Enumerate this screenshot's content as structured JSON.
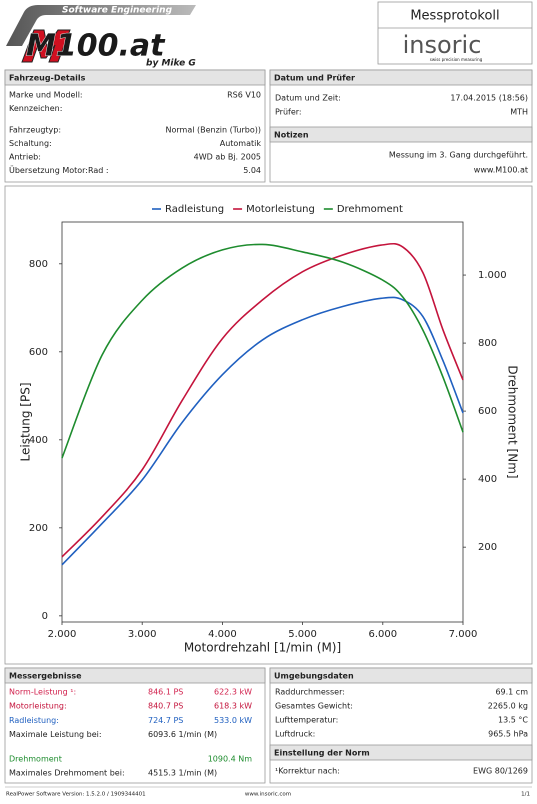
{
  "header": {
    "logo_tagline": "Software Engineering",
    "logo_title": "M100.at",
    "logo_author": "by Mike G",
    "protocol_title": "Messprotokoll",
    "brand": "insoric",
    "brand_tagline": "swiss precision measuring"
  },
  "vehicle": {
    "title": "Fahrzeug-Details",
    "rows": [
      [
        "Marke und Modell:",
        "RS6 V10"
      ],
      [
        "Kennzeichen:"
      ],
      [
        "Fahrzeugtyp:",
        "Normal (Benzin (Turbo))"
      ],
      [
        "Schaltung:",
        "Automatik"
      ],
      [
        "Antrieb:",
        "4WD ab Bj. 2005"
      ],
      [
        "Übersetzung Motor:Rad :",
        "5.04"
      ]
    ]
  },
  "inspection": {
    "title": "Datum und Prüfer",
    "rows": [
      [
        "Datum und Zeit:",
        "17.04.2015 (18:56)"
      ],
      [
        "Prüfer:",
        "MTH"
      ]
    ]
  },
  "notes": {
    "title": "Notizen",
    "lines": [
      "Messung im 3. Gang durchgeführt.",
      "www.M100.at"
    ]
  },
  "chart_data": {
    "type": "line",
    "x_label": "Motordrehzahl [1/min (M)]",
    "y_label": "Leistung [PS]",
    "y2_label": "Drehmoment [Nm]",
    "x": [
      2000,
      2500,
      3000,
      3500,
      4000,
      4500,
      5000,
      5500,
      6000,
      6250,
      6500,
      6750,
      7000
    ],
    "series": [
      {
        "name": "Radleistung",
        "color": "#2060c0",
        "values": [
          116,
          210,
          309,
          440,
          548,
          627,
          673,
          703,
          722,
          718,
          680,
          580,
          461
        ]
      },
      {
        "name": "Motorleistung",
        "color": "#c4143c",
        "values": [
          134,
          225,
          332,
          490,
          630,
          718,
          782,
          820,
          843,
          838,
          780,
          650,
          536
        ]
      },
      {
        "name": "Drehmoment",
        "color": "#1e8c2e",
        "axis": "y2",
        "values": [
          462,
          765,
          926,
          1021,
          1074,
          1090,
          1068,
          1038,
          985,
          935,
          838,
          700,
          538
        ]
      }
    ],
    "xlim": [
      2000,
      7000
    ],
    "xticks": [
      {
        "value": 2000,
        "label": "2.000"
      },
      {
        "value": 3000,
        "label": "3.000"
      },
      {
        "value": 4000,
        "label": "4.000"
      },
      {
        "value": 5000,
        "label": "5.000"
      },
      {
        "value": 6000,
        "label": "6.000"
      },
      {
        "value": 7000,
        "label": "7.000"
      }
    ],
    "ylim": [
      -14,
      895
    ],
    "yticks": [
      0,
      200,
      400,
      600,
      800
    ],
    "y2lim": [
      -20,
      1156
    ],
    "y2ticks": [
      200,
      400,
      600,
      800,
      {
        "value": 1000,
        "label": "1.000"
      }
    ],
    "legend": "top",
    "grid": false
  },
  "results": {
    "title": "Messergebnisse",
    "rows": [
      {
        "label": "Norm-Leistung ¹:",
        "mid": "846.1 PS",
        "right": "622.3 kW",
        "color": "#d2224e"
      },
      {
        "label": "Motorleistung:",
        "mid": "840.7 PS",
        "right": "618.3 kW",
        "color": "#c4143c"
      },
      {
        "label": "Radleistung:",
        "mid": "724.7 PS",
        "right": "533.0 kW",
        "color": "#2060c0"
      },
      {
        "label": "Maximale Leistung bei:",
        "mid": "6093.6 1/min (M)"
      },
      {
        "label": "Drehmoment",
        "right": "1090.4 Nm",
        "color": "#1e8c2e"
      },
      {
        "label": "Maximales Drehmoment bei:",
        "mid": "4515.3 1/min (M)"
      }
    ]
  },
  "environment": {
    "title": "Umgebungsdaten",
    "rows": [
      [
        "Raddurchmesser:",
        "69.1 cm"
      ],
      [
        "Gesamtes Gewicht:",
        "2265.0 kg"
      ],
      [
        "Lufttemperatur:",
        "13.5 °C"
      ],
      [
        "Luftdruck:",
        "965.5 hPa"
      ]
    ]
  },
  "norm": {
    "title": "Einstellung der Norm",
    "rows": [
      [
        "¹Korrektur nach:",
        "EWG 80/1269"
      ]
    ]
  },
  "footer": {
    "version": "RealPower Software Version: 1.5.2.0 / 1909344401",
    "website": "www.insoric.com",
    "page": "1/1"
  }
}
